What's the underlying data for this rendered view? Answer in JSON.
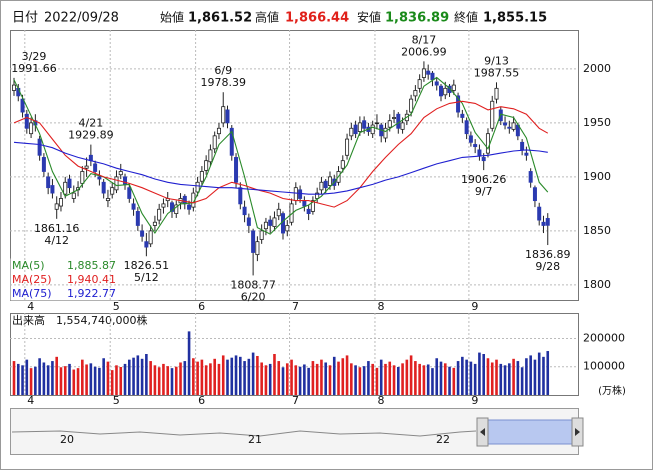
{
  "chart_data": {
    "type": "candlestick",
    "summary": {
      "date_label": "日付",
      "date": "2022/09/28",
      "fields": [
        {
          "label": "始値",
          "value": "1,861.52",
          "color": "#111111"
        },
        {
          "label": "高値",
          "value": "1,866.44",
          "color": "#e0201a"
        },
        {
          "label": "安値",
          "value": "1,836.89",
          "color": "#1a8a1a"
        },
        {
          "label": "終値",
          "value": "1,855.15",
          "color": "#111111"
        }
      ]
    },
    "categories": [
      null,
      null,
      null,
      "4",
      null,
      null,
      null,
      null,
      null,
      null,
      null,
      null,
      null,
      null,
      null,
      null,
      null,
      null,
      null,
      null,
      null,
      null,
      null,
      "5",
      null,
      null,
      null,
      null,
      null,
      null,
      null,
      null,
      null,
      null,
      null,
      null,
      null,
      null,
      null,
      null,
      null,
      null,
      null,
      "6",
      null,
      null,
      null,
      null,
      null,
      null,
      null,
      null,
      null,
      null,
      null,
      null,
      null,
      null,
      null,
      null,
      null,
      null,
      null,
      null,
      null,
      "7",
      null,
      null,
      null,
      null,
      null,
      null,
      null,
      null,
      null,
      null,
      null,
      null,
      null,
      null,
      null,
      null,
      null,
      null,
      null,
      "8",
      null,
      null,
      null,
      null,
      null,
      null,
      null,
      null,
      null,
      null,
      null,
      null,
      null,
      null,
      null,
      null,
      null,
      null,
      null,
      null,
      null,
      "9",
      null,
      null,
      null,
      null,
      null,
      null,
      null,
      null,
      null,
      null,
      null,
      null,
      null,
      null,
      null,
      null,
      null,
      null
    ],
    "ohlc": [
      [
        1980,
        1991.66,
        1975,
        1985
      ],
      [
        1982,
        1986,
        1970,
        1975
      ],
      [
        1972,
        1976,
        1955,
        1960
      ],
      [
        1958,
        1962,
        1940,
        1945
      ],
      [
        1940,
        1955,
        1936,
        1950
      ],
      [
        1952,
        1958,
        1942,
        1948
      ],
      [
        1935,
        1938,
        1915,
        1920
      ],
      [
        1918,
        1922,
        1900,
        1905
      ],
      [
        1900,
        1904,
        1884,
        1890
      ],
      [
        1892,
        1898,
        1880,
        1885
      ],
      [
        1870,
        1882,
        1861.16,
        1875
      ],
      [
        1873,
        1886,
        1868,
        1880
      ],
      [
        1884,
        1900,
        1880,
        1895
      ],
      [
        1898,
        1902,
        1885,
        1890
      ],
      [
        1880,
        1892,
        1876,
        1885
      ],
      [
        1888,
        1896,
        1882,
        1890
      ],
      [
        1894,
        1910,
        1890,
        1905
      ],
      [
        1908,
        1918,
        1900,
        1910
      ],
      [
        1920,
        1929.89,
        1910,
        1915
      ],
      [
        1912,
        1915,
        1900,
        1905
      ],
      [
        1900,
        1906,
        1892,
        1898
      ],
      [
        1895,
        1898,
        1880,
        1885
      ],
      [
        1878,
        1888,
        1872,
        1880
      ],
      [
        1884,
        1895,
        1880,
        1890
      ],
      [
        1888,
        1906,
        1885,
        1900
      ],
      [
        1902,
        1912,
        1898,
        1905
      ],
      [
        1900,
        1903,
        1888,
        1893
      ],
      [
        1890,
        1894,
        1876,
        1880
      ],
      [
        1875,
        1880,
        1864,
        1870
      ],
      [
        1868,
        1872,
        1850,
        1855
      ],
      [
        1850,
        1856,
        1840,
        1845
      ],
      [
        1840,
        1848,
        1826.51,
        1835
      ],
      [
        1838,
        1855,
        1835,
        1850
      ],
      [
        1855,
        1864,
        1850,
        1858
      ],
      [
        1860,
        1875,
        1856,
        1870
      ],
      [
        1872,
        1880,
        1866,
        1875
      ],
      [
        1878,
        1886,
        1872,
        1880
      ],
      [
        1876,
        1878,
        1862,
        1868
      ],
      [
        1866,
        1878,
        1862,
        1874
      ],
      [
        1876,
        1885,
        1870,
        1880
      ],
      [
        1882,
        1884,
        1870,
        1875
      ],
      [
        1874,
        1878,
        1865,
        1870
      ],
      [
        1872,
        1890,
        1868,
        1885
      ],
      [
        1886,
        1900,
        1882,
        1895
      ],
      [
        1896,
        1910,
        1892,
        1905
      ],
      [
        1906,
        1920,
        1902,
        1915
      ],
      [
        1914,
        1930,
        1910,
        1925
      ],
      [
        1926,
        1942,
        1922,
        1938
      ],
      [
        1940,
        1950,
        1935,
        1945
      ],
      [
        1950,
        1978.39,
        1946,
        1965
      ],
      [
        1962,
        1966,
        1945,
        1950
      ],
      [
        1945,
        1948,
        1915,
        1920
      ],
      [
        1918,
        1922,
        1890,
        1895
      ],
      [
        1890,
        1895,
        1870,
        1875
      ],
      [
        1872,
        1878,
        1858,
        1865
      ],
      [
        1862,
        1866,
        1848,
        1855
      ],
      [
        1850,
        1852,
        1808.77,
        1830
      ],
      [
        1828,
        1845,
        1822,
        1840
      ],
      [
        1842,
        1856,
        1838,
        1850
      ],
      [
        1852,
        1862,
        1846,
        1858
      ],
      [
        1860,
        1864,
        1848,
        1855
      ],
      [
        1854,
        1868,
        1850,
        1862
      ],
      [
        1864,
        1876,
        1860,
        1870
      ],
      [
        1866,
        1868,
        1842,
        1848
      ],
      [
        1850,
        1860,
        1845,
        1855
      ],
      [
        1858,
        1880,
        1855,
        1875
      ],
      [
        1878,
        1895,
        1874,
        1890
      ],
      [
        1888,
        1892,
        1876,
        1880
      ],
      [
        1878,
        1882,
        1868,
        1873
      ],
      [
        1870,
        1874,
        1860,
        1866
      ],
      [
        1868,
        1882,
        1865,
        1878
      ],
      [
        1880,
        1890,
        1876,
        1885
      ],
      [
        1888,
        1900,
        1884,
        1895
      ],
      [
        1896,
        1898,
        1885,
        1890
      ],
      [
        1892,
        1905,
        1888,
        1900
      ],
      [
        1898,
        1902,
        1888,
        1892
      ],
      [
        1895,
        1910,
        1892,
        1905
      ],
      [
        1908,
        1920,
        1904,
        1915
      ],
      [
        1920,
        1940,
        1916,
        1935
      ],
      [
        1938,
        1950,
        1934,
        1945
      ],
      [
        1948,
        1952,
        1936,
        1940
      ],
      [
        1942,
        1956,
        1938,
        1950
      ],
      [
        1952,
        1956,
        1940,
        1945
      ],
      [
        1946,
        1950,
        1938,
        1942
      ],
      [
        1940,
        1952,
        1936,
        1948
      ],
      [
        1950,
        1958,
        1944,
        1950
      ],
      [
        1948,
        1950,
        1932,
        1938
      ],
      [
        1936,
        1950,
        1932,
        1945
      ],
      [
        1946,
        1958,
        1942,
        1952
      ],
      [
        1954,
        1962,
        1950,
        1955
      ],
      [
        1958,
        1960,
        1940,
        1945
      ],
      [
        1944,
        1955,
        1940,
        1950
      ],
      [
        1952,
        1962,
        1948,
        1958
      ],
      [
        1960,
        1976,
        1956,
        1972
      ],
      [
        1975,
        1985,
        1970,
        1980
      ],
      [
        1982,
        1995,
        1978,
        1990
      ],
      [
        1992,
        2006.99,
        1988,
        2000
      ],
      [
        1998,
        2004,
        1990,
        1995
      ],
      [
        1996,
        1998,
        1984,
        1990
      ],
      [
        1988,
        1992,
        1980,
        1985
      ],
      [
        1984,
        1986,
        1970,
        1975
      ],
      [
        1976,
        1988,
        1972,
        1982
      ],
      [
        1984,
        1986,
        1974,
        1978
      ],
      [
        1980,
        1990,
        1976,
        1985
      ],
      [
        1975,
        1978,
        1955,
        1960
      ],
      [
        1958,
        1962,
        1950,
        1955
      ],
      [
        1952,
        1955,
        1935,
        1940
      ],
      [
        1938,
        1942,
        1928,
        1932
      ],
      [
        1930,
        1935,
        1922,
        1928
      ],
      [
        1925,
        1930,
        1915,
        1920
      ],
      [
        1918,
        1922,
        1906.26,
        1915
      ],
      [
        1922,
        1945,
        1918,
        1940
      ],
      [
        1945,
        1975,
        1942,
        1970
      ],
      [
        1972,
        1987.55,
        1968,
        1982
      ],
      [
        1962,
        1965,
        1948,
        1952
      ],
      [
        1950,
        1956,
        1944,
        1948
      ],
      [
        1946,
        1952,
        1940,
        1945
      ],
      [
        1944,
        1956,
        1942,
        1950
      ],
      [
        1948,
        1950,
        1934,
        1938
      ],
      [
        1932,
        1935,
        1920,
        1925
      ],
      [
        1922,
        1928,
        1915,
        1920
      ],
      [
        1905,
        1908,
        1890,
        1895
      ],
      [
        1890,
        1892,
        1872,
        1878
      ],
      [
        1872,
        1876,
        1855,
        1860
      ],
      [
        1858,
        1864,
        1848,
        1855
      ],
      [
        1861.52,
        1866.44,
        1836.89,
        1855.15
      ]
    ],
    "up_color": "#ffffff",
    "down_color": "#2b3ab0",
    "ylim": [
      1786,
      2036
    ],
    "yticks": [
      1800,
      1850,
      1900,
      1950,
      2000
    ],
    "ma": [
      {
        "name": "MA(5)",
        "color": "#2a8a2a",
        "latest": {
          "value": 1885.87,
          "label": "1,885.87"
        },
        "x": [
          0,
          3,
          6,
          9,
          12,
          15,
          18,
          21,
          24,
          27,
          30,
          33,
          36,
          39,
          42,
          45,
          48,
          51,
          54,
          57,
          60,
          63,
          66,
          69,
          72,
          75,
          78,
          81,
          84,
          87,
          90,
          93,
          96,
          99,
          102,
          105,
          108,
          111,
          114,
          117,
          120,
          123,
          125
        ],
        "values": [
          1990,
          1965,
          1940,
          1905,
          1882,
          1888,
          1903,
          1900,
          1892,
          1893,
          1866,
          1848,
          1866,
          1875,
          1876,
          1900,
          1930,
          1942,
          1900,
          1853,
          1847,
          1859,
          1869,
          1874,
          1882,
          1895,
          1911,
          1941,
          1946,
          1942,
          1950,
          1958,
          1984,
          1992,
          1982,
          1968,
          1941,
          1926,
          1958,
          1955,
          1936,
          1895,
          1885.87
        ]
      },
      {
        "name": "MA(25)",
        "color": "#e02020",
        "latest": {
          "value": 1940.41,
          "label": "1,940.41"
        },
        "x": [
          0,
          3,
          6,
          9,
          12,
          15,
          18,
          21,
          24,
          27,
          30,
          33,
          36,
          39,
          42,
          45,
          48,
          51,
          54,
          57,
          60,
          63,
          66,
          69,
          72,
          75,
          78,
          81,
          84,
          87,
          90,
          93,
          96,
          99,
          102,
          105,
          108,
          111,
          114,
          117,
          120,
          123,
          125
        ],
        "values": [
          1950,
          1955,
          1950,
          1935,
          1920,
          1910,
          1905,
          1900,
          1897,
          1894,
          1890,
          1885,
          1880,
          1878,
          1876,
          1880,
          1890,
          1895,
          1892,
          1888,
          1885,
          1880,
          1878,
          1878,
          1875,
          1872,
          1878,
          1890,
          1905,
          1918,
          1930,
          1940,
          1955,
          1963,
          1968,
          1970,
          1968,
          1962,
          1965,
          1963,
          1958,
          1945,
          1940.41
        ]
      },
      {
        "name": "MA(75)",
        "color": "#2020d0",
        "latest": {
          "value": 1922.77,
          "label": "1,922.77"
        },
        "x": [
          0,
          3,
          6,
          9,
          12,
          15,
          18,
          21,
          24,
          27,
          30,
          33,
          36,
          39,
          42,
          45,
          48,
          51,
          54,
          57,
          60,
          63,
          66,
          69,
          72,
          75,
          78,
          81,
          84,
          87,
          90,
          93,
          96,
          99,
          102,
          105,
          108,
          111,
          114,
          117,
          120,
          123,
          125
        ],
        "values": [
          1932,
          1931,
          1930,
          1927,
          1922,
          1918,
          1915,
          1912,
          1908,
          1905,
          1902,
          1898,
          1895,
          1893,
          1892,
          1891,
          1890,
          1890,
          1889,
          1888,
          1887,
          1886,
          1885,
          1884,
          1884,
          1885,
          1887,
          1890,
          1893,
          1897,
          1900,
          1904,
          1908,
          1912,
          1915,
          1918,
          1919,
          1920,
          1922,
          1924,
          1925,
          1924,
          1922.77
        ]
      }
    ],
    "annotations": [
      {
        "date": "3/29",
        "value": 1991.66
      },
      {
        "date": "4/12",
        "value": 1861.16
      },
      {
        "date": "4/21",
        "value": 1929.89
      },
      {
        "date": "5/12",
        "value": 1826.51
      },
      {
        "date": "6/9",
        "value": 1978.39
      },
      {
        "date": "6/20",
        "value": 1808.77
      },
      {
        "date": "8/17",
        "value": 2006.99
      },
      {
        "date": "9/7",
        "value": 1906.26
      },
      {
        "date": "9/13",
        "value": 1987.55
      },
      {
        "date": "9/28",
        "value": 1836.89
      }
    ],
    "volume": {
      "title": "出来高　1,554,740,000株",
      "unit": "(万株)",
      "ylim": [
        0,
        290000
      ],
      "yticks": [
        100000,
        200000
      ],
      "up_color": "#e02020",
      "down_color": "#2030a0",
      "values": [
        120000,
        110000,
        105000,
        125000,
        95000,
        100000,
        130000,
        115000,
        105000,
        120000,
        135000,
        98000,
        102000,
        110000,
        90000,
        95000,
        125000,
        108000,
        112000,
        100000,
        96000,
        130000,
        118000,
        88000,
        105000,
        99000,
        110000,
        125000,
        132000,
        140000,
        128000,
        145000,
        120000,
        105000,
        98000,
        110000,
        102000,
        95000,
        100000,
        115000,
        120000,
        225000,
        130000,
        118000,
        125000,
        105000,
        112000,
        128000,
        110000,
        140000,
        125000,
        132000,
        140000,
        135000,
        120000,
        128000,
        150000,
        138000,
        115000,
        105000,
        110000,
        145000,
        120000,
        98000,
        112000,
        125000,
        105000,
        100000,
        108000,
        96000,
        120000,
        110000,
        125000,
        115000,
        105000,
        135000,
        118000,
        130000,
        140000,
        112000,
        105000,
        98000,
        102000,
        120000,
        110000,
        96000,
        125000,
        110000,
        118000,
        105000,
        99000,
        112000,
        125000,
        140000,
        120000,
        110000,
        105000,
        108000,
        95000,
        130000,
        118000,
        112000,
        100000,
        96000,
        120000,
        135000,
        125000,
        118000,
        110000,
        150000,
        145000,
        130000,
        115000,
        125000,
        110000,
        105000,
        112000,
        128000,
        120000,
        98000,
        130000,
        140000,
        125000,
        150000,
        135000,
        155474
      ]
    },
    "navigator": {
      "labels": [
        "20",
        "21",
        "22"
      ]
    },
    "grid": true
  }
}
